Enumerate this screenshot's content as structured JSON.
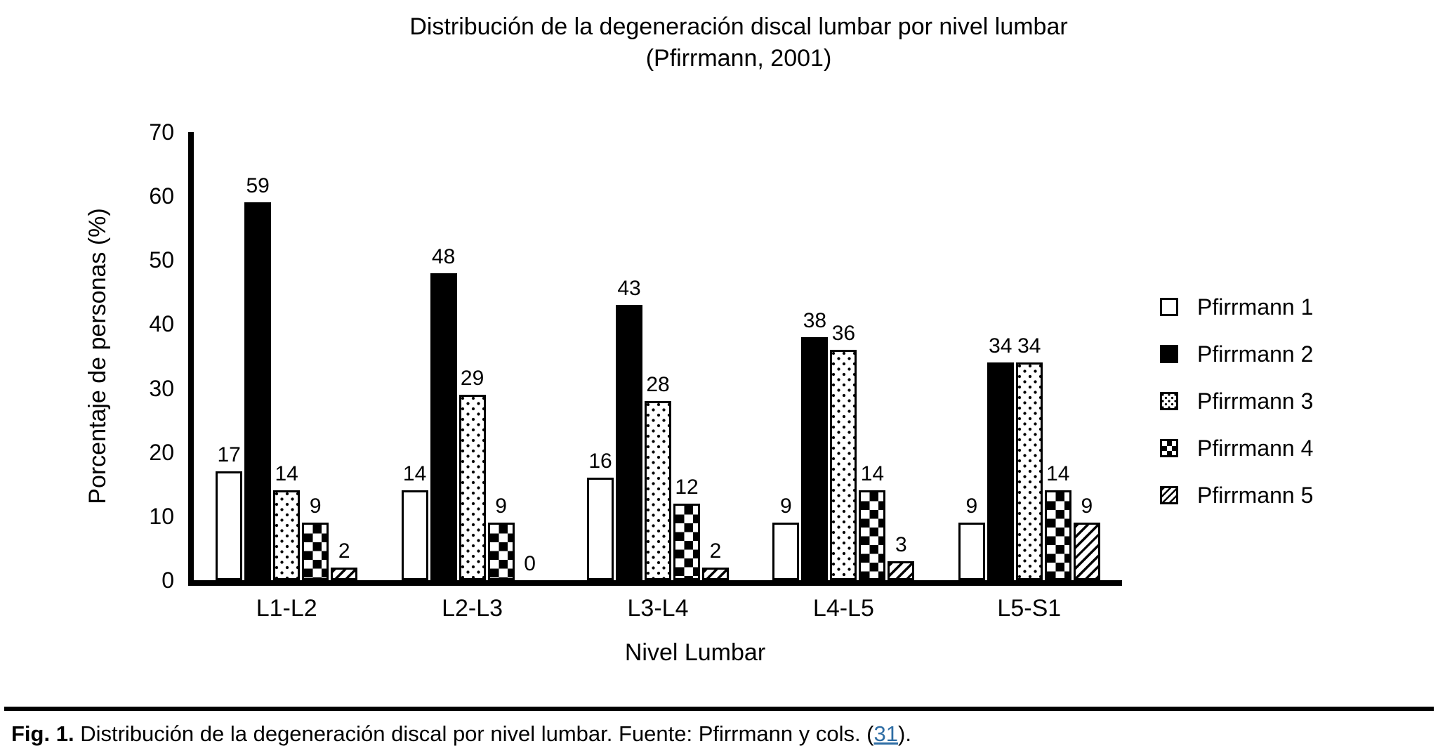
{
  "title": {
    "line1": "Distribución de la degeneración discal lumbar por nivel lumbar",
    "line2": "(Pfirrmann, 2001)"
  },
  "chart_data": {
    "type": "bar",
    "title": "Distribución de la degeneración discal lumbar por nivel lumbar (Pfirrmann, 2001)",
    "categories": [
      "L1-L2",
      "L2-L3",
      "L3-L4",
      "L4-L5",
      "L5-S1"
    ],
    "series": [
      {
        "name": "Pfirrmann 1",
        "pattern": "outline-white",
        "values": [
          17,
          14,
          16,
          9,
          9
        ]
      },
      {
        "name": "Pfirrmann 2",
        "pattern": "solid-black",
        "values": [
          59,
          48,
          43,
          38,
          34
        ]
      },
      {
        "name": "Pfirrmann 3",
        "pattern": "dots",
        "values": [
          14,
          29,
          28,
          36,
          34
        ]
      },
      {
        "name": "Pfirrmann 4",
        "pattern": "checkerboard",
        "values": [
          9,
          9,
          12,
          14,
          14
        ]
      },
      {
        "name": "Pfirrmann 5",
        "pattern": "diagonal-stripes",
        "values": [
          2,
          0,
          2,
          3,
          9
        ]
      }
    ],
    "xlabel": "Nivel Lumbar",
    "ylabel": "Porcentaje de personas (%)",
    "ylim": [
      0,
      70
    ],
    "yticks": [
      0,
      10,
      20,
      30,
      40,
      50,
      60,
      70
    ],
    "grid": false,
    "legend_position": "right",
    "bar_value_labels": true
  },
  "colors": {
    "foreground": "#000000",
    "background": "#ffffff",
    "link_blue": "#2E6DA4"
  },
  "caption": {
    "fig_label": "Fig. 1.",
    "body": " Distribución de la degeneración discal por nivel lumbar. Fuente: Pfirrmann y cols. (",
    "link_text": "31",
    "suffix": ")."
  }
}
